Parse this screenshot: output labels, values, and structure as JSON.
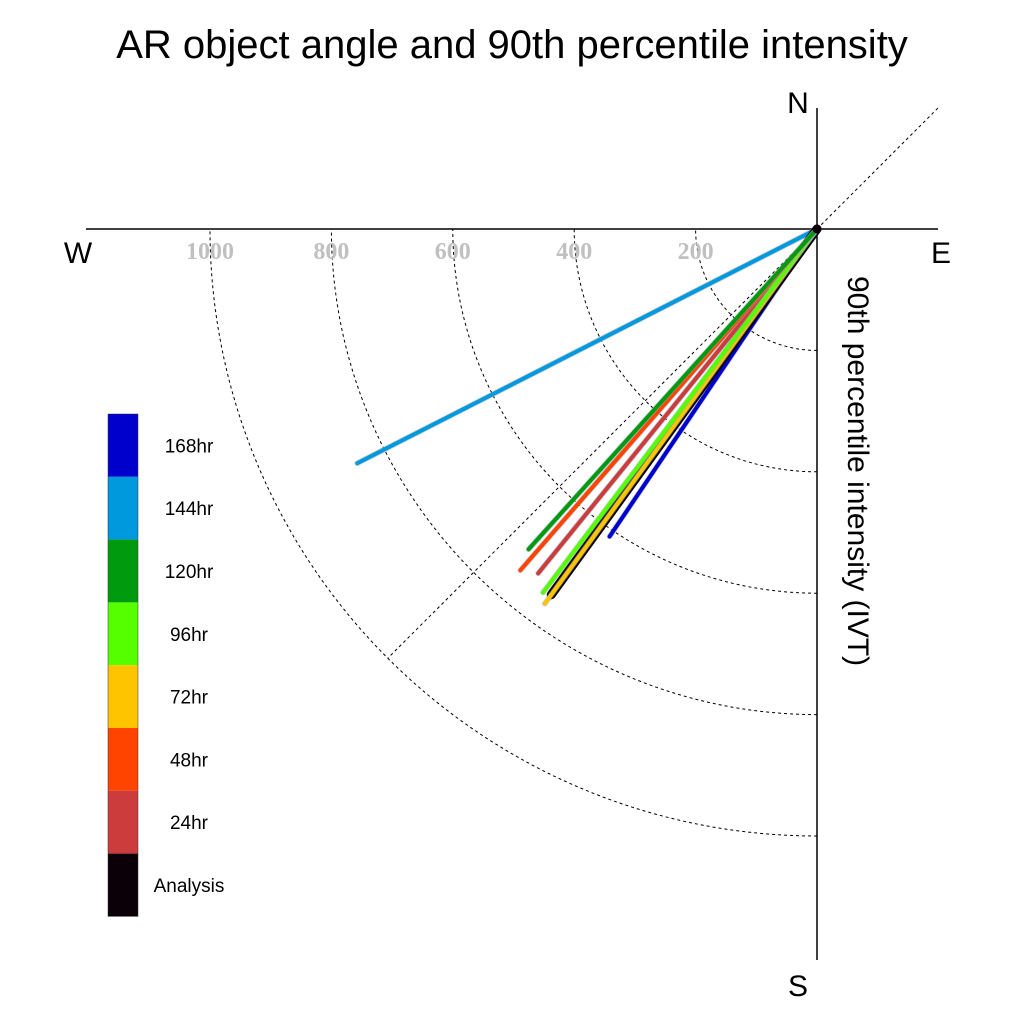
{
  "chart_data": {
    "type": "polar-vector",
    "title": "AR object angle and 90th percentile intensity",
    "ylabel": "90th percentile intensity (IVT)",
    "compass": {
      "north": "N",
      "south": "S",
      "east": "E",
      "west": "W"
    },
    "radial_ticks": [
      "200",
      "400",
      "600",
      "800",
      "1000"
    ],
    "radial_tick_values": [
      200,
      400,
      600,
      800,
      1000
    ],
    "rlim": [
      0,
      1000
    ],
    "grid": true,
    "legend_position": "left",
    "series": [
      {
        "name": "Analysis",
        "angle_deg": 216,
        "intensity": 745,
        "color": "#0b0008"
      },
      {
        "name": "24hr",
        "angle_deg": 219,
        "intensity": 730,
        "color": "#cc3c3c"
      },
      {
        "name": "48hr",
        "angle_deg": 221,
        "intensity": 745,
        "color": "#ff4400"
      },
      {
        "name": "72hr",
        "angle_deg": 216,
        "intensity": 763,
        "color": "#ffc400"
      },
      {
        "name": "96hr",
        "angle_deg": 217,
        "intensity": 750,
        "color": "#55ff00"
      },
      {
        "name": "120hr",
        "angle_deg": 222,
        "intensity": 710,
        "color": "#009a0e"
      },
      {
        "name": "144hr",
        "angle_deg": 243,
        "intensity": 850,
        "color": "#0099dd"
      },
      {
        "name": "168hr",
        "angle_deg": 214,
        "intensity": 611,
        "color": "#0000cc"
      }
    ],
    "legend_order": [
      "168hr",
      "144hr",
      "120hr",
      "96hr",
      "72hr",
      "48hr",
      "24hr",
      "Analysis"
    ]
  }
}
